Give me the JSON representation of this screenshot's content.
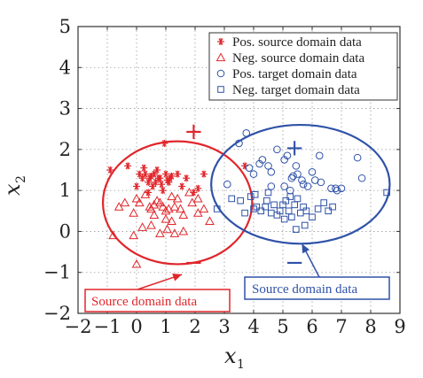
{
  "colors": {
    "red": "#e0262b",
    "blue": "#2f52a8"
  },
  "chart_data": {
    "type": "scatter",
    "xlim": [
      -2,
      9
    ],
    "ylim": [
      -2,
      5
    ],
    "x_ticks": [
      "−2",
      "−1",
      "0",
      "1",
      "2",
      "3",
      "4",
      "5",
      "6",
      "7",
      "8",
      "9"
    ],
    "y_ticks": [
      "−2",
      "−1",
      "0",
      "1",
      "2",
      "3",
      "4",
      "5"
    ],
    "xlabel": {
      "symbol": "x",
      "sub": "1"
    },
    "ylabel": {
      "symbol": "x",
      "sub": "2"
    },
    "grid": true,
    "legend_position": "top-right",
    "series": [
      {
        "name": "Pos. source domain data",
        "marker": "asterisk",
        "color": "red",
        "points": [
          [
            -0.9,
            1.5
          ],
          [
            -0.3,
            1.6
          ],
          [
            0.0,
            1.1
          ],
          [
            0.1,
            1.4
          ],
          [
            0.2,
            1.3
          ],
          [
            0.3,
            1.4
          ],
          [
            0.4,
            1.2
          ],
          [
            0.45,
            1.3
          ],
          [
            0.5,
            1.35
          ],
          [
            0.55,
            1.1
          ],
          [
            0.6,
            1.4
          ],
          [
            0.65,
            1.2
          ],
          [
            0.7,
            1.5
          ],
          [
            0.75,
            1.3
          ],
          [
            0.8,
            1.3
          ],
          [
            0.85,
            1.15
          ],
          [
            0.9,
            1.0
          ],
          [
            1.0,
            1.4
          ],
          [
            1.05,
            1.25
          ],
          [
            1.1,
            1.2
          ],
          [
            1.15,
            1.3
          ],
          [
            1.2,
            1.35
          ],
          [
            1.4,
            1.4
          ],
          [
            1.55,
            1.1
          ],
          [
            1.7,
            1.3
          ],
          [
            1.95,
            0.95
          ],
          [
            2.1,
            1.05
          ],
          [
            2.3,
            1.4
          ],
          [
            0.4,
            0.95
          ],
          [
            0.25,
            1.55
          ],
          [
            0.95,
            2.15
          ],
          [
            3.7,
            1.6
          ]
        ]
      },
      {
        "name": "Neg. source domain data",
        "marker": "triangle",
        "color": "red",
        "points": [
          [
            -0.6,
            0.6
          ],
          [
            -0.4,
            0.7
          ],
          [
            -0.1,
            0.45
          ],
          [
            0.0,
            0.8
          ],
          [
            0.1,
            0.7
          ],
          [
            0.3,
            0.9
          ],
          [
            0.45,
            0.6
          ],
          [
            0.5,
            0.55
          ],
          [
            0.6,
            0.65
          ],
          [
            0.7,
            0.75
          ],
          [
            0.8,
            0.7
          ],
          [
            0.9,
            0.6
          ],
          [
            1.0,
            0.5
          ],
          [
            1.1,
            0.55
          ],
          [
            1.2,
            0.85
          ],
          [
            1.3,
            0.6
          ],
          [
            1.4,
            0.8
          ],
          [
            1.5,
            0.55
          ],
          [
            1.6,
            0.4
          ],
          [
            1.8,
            0.95
          ],
          [
            1.9,
            0.7
          ],
          [
            2.1,
            0.8
          ],
          [
            2.3,
            0.55
          ],
          [
            2.5,
            0.25
          ],
          [
            -0.1,
            -0.1
          ],
          [
            0.2,
            0.1
          ],
          [
            0.6,
            0.4
          ],
          [
            0.8,
            -0.05
          ],
          [
            1.05,
            0.05
          ],
          [
            1.2,
            0.25
          ],
          [
            1.6,
            0.0
          ],
          [
            2.1,
            0.45
          ],
          [
            -0.8,
            -0.1
          ],
          [
            0.0,
            -0.8
          ],
          [
            0.5,
            0.15
          ],
          [
            1.3,
            -0.05
          ],
          [
            1.0,
            0.3
          ]
        ]
      },
      {
        "name": "Pos. target domain data",
        "marker": "circle",
        "color": "blue",
        "points": [
          [
            3.5,
            2.15
          ],
          [
            3.75,
            2.4
          ],
          [
            3.85,
            1.55
          ],
          [
            4.0,
            1.4
          ],
          [
            4.3,
            1.75
          ],
          [
            4.5,
            1.6
          ],
          [
            4.6,
            1.45
          ],
          [
            4.8,
            2.0
          ],
          [
            5.05,
            1.75
          ],
          [
            5.15,
            1.85
          ],
          [
            5.3,
            1.3
          ],
          [
            5.45,
            1.6
          ],
          [
            5.5,
            1.4
          ],
          [
            5.7,
            1.15
          ],
          [
            5.85,
            1.1
          ],
          [
            6.0,
            1.45
          ],
          [
            6.25,
            1.85
          ],
          [
            6.3,
            1.2
          ],
          [
            6.65,
            1.05
          ],
          [
            6.8,
            1.05
          ],
          [
            7.0,
            1.05
          ],
          [
            7.55,
            1.8
          ],
          [
            7.7,
            1.3
          ],
          [
            3.1,
            1.15
          ],
          [
            4.6,
            1.1
          ],
          [
            5.05,
            1.1
          ],
          [
            5.25,
            1.0
          ],
          [
            5.65,
            1.25
          ],
          [
            6.1,
            1.25
          ],
          [
            6.85,
            1.0
          ],
          [
            4.2,
            1.65
          ],
          [
            5.35,
            1.35
          ]
        ]
      },
      {
        "name": "Neg. target domain data",
        "marker": "square",
        "color": "blue",
        "points": [
          [
            2.75,
            0.55
          ],
          [
            3.25,
            0.8
          ],
          [
            3.55,
            0.75
          ],
          [
            3.7,
            0.45
          ],
          [
            3.9,
            0.85
          ],
          [
            4.0,
            0.55
          ],
          [
            4.1,
            0.6
          ],
          [
            4.25,
            0.5
          ],
          [
            4.4,
            0.6
          ],
          [
            4.5,
            0.95
          ],
          [
            4.6,
            0.45
          ],
          [
            4.7,
            0.65
          ],
          [
            4.8,
            0.4
          ],
          [
            4.9,
            0.5
          ],
          [
            5.0,
            0.65
          ],
          [
            5.1,
            0.75
          ],
          [
            5.2,
            0.5
          ],
          [
            5.3,
            0.35
          ],
          [
            5.4,
            0.65
          ],
          [
            5.5,
            0.8
          ],
          [
            5.6,
            0.45
          ],
          [
            5.7,
            0.6
          ],
          [
            5.8,
            0.5
          ],
          [
            6.0,
            0.35
          ],
          [
            6.2,
            0.55
          ],
          [
            6.4,
            0.7
          ],
          [
            6.55,
            0.5
          ],
          [
            6.7,
            0.6
          ],
          [
            4.05,
            0.9
          ],
          [
            4.45,
            0.75
          ],
          [
            5.05,
            0.3
          ],
          [
            5.25,
            0.85
          ],
          [
            5.45,
            0.05
          ],
          [
            5.75,
            0.15
          ],
          [
            8.55,
            0.95
          ]
        ]
      }
    ],
    "ellipses": [
      {
        "name": "source",
        "color": "red",
        "cx": 1.4,
        "cy": 0.7,
        "rx": 2.55,
        "ry": 1.5
      },
      {
        "name": "target",
        "color": "blue",
        "cx": 5.6,
        "cy": 1.15,
        "rx": 3.05,
        "ry": 1.45
      }
    ],
    "annotations": [
      {
        "text": "+",
        "color": "red",
        "x": 1.95,
        "y": 2.45
      },
      {
        "text": "−",
        "color": "red",
        "x": 1.95,
        "y": -0.75
      },
      {
        "text": "+",
        "color": "blue",
        "x": 5.4,
        "y": 2.05
      },
      {
        "text": "−",
        "color": "blue",
        "x": 5.4,
        "y": -0.75
      }
    ],
    "callouts": [
      {
        "text": "Source domain data",
        "color": "red",
        "arrow_to": [
          1.55,
          -1.05
        ]
      },
      {
        "text": "Source domain data",
        "color": "blue",
        "arrow_to": [
          5.65,
          -0.3
        ]
      }
    ]
  }
}
